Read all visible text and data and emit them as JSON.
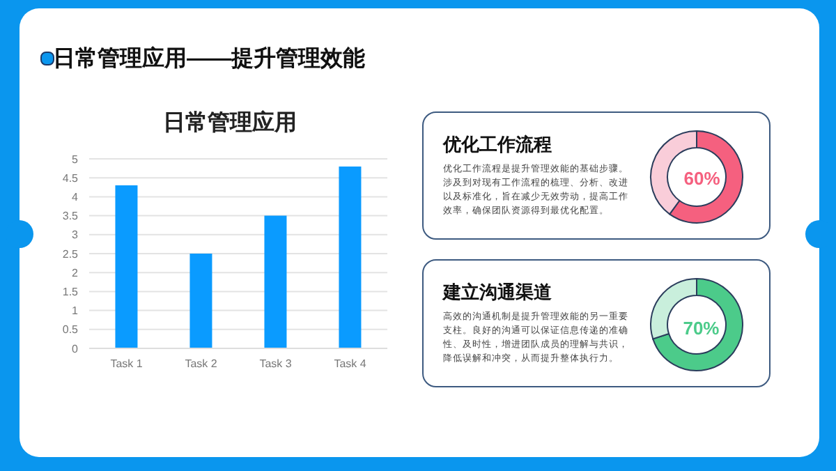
{
  "chart_data": [
    {
      "type": "bar",
      "title": "日常管理应用",
      "annotations": [
        "日常管理应用——提升管理效能"
      ],
      "categories": [
        "Task 1",
        "Task 2",
        "Task 3",
        "Task 4"
      ],
      "values": [
        4.3,
        2.5,
        3.5,
        4.8
      ],
      "color": "#0a9bff",
      "ylim": [
        0,
        5
      ],
      "yticks": [
        0,
        0.5,
        1,
        1.5,
        2,
        2.5,
        3,
        3.5,
        4,
        4.5,
        5
      ],
      "grid": "y"
    },
    {
      "type": "donut",
      "title": "优化工作流程",
      "annotations": [
        "优化工作流程是提升管理效能的基础步骤。涉及到对现有工作流程的梳理、分析、改进以及标准化，旨在减少无效劳动，提高工作效率，确保团队资源得到最优化配置。"
      ],
      "categories": [
        null,
        null
      ],
      "values": [
        60,
        40
      ],
      "colors": [
        "#f5607f",
        "#f9cdd9"
      ],
      "value_labels": [
        "60%",
        null
      ]
    },
    {
      "type": "donut",
      "title": "建立沟通渠道",
      "annotations": [
        "高效的沟通机制是提升管理效能的另一重要支柱。良好的沟通可以保证信息传递的准确性、及时性，增进团队成员的理解与共识，降低误解和冲突，从而提升整体执行力。"
      ],
      "categories": [
        null,
        null
      ],
      "values": [
        70,
        30
      ],
      "colors": [
        "#4ccb8a",
        "#c9efdc"
      ],
      "value_labels": [
        "70%",
        null
      ]
    }
  ]
}
